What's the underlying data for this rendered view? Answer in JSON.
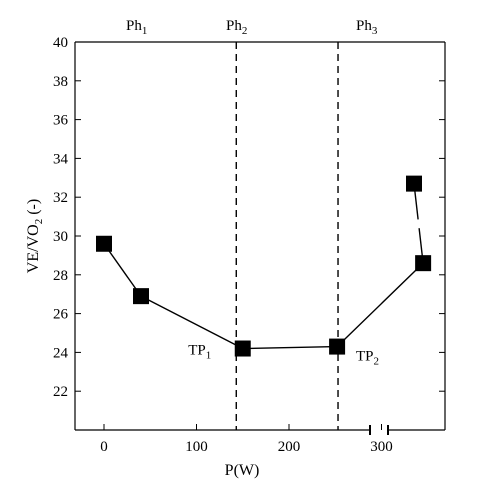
{
  "chart_data": {
    "type": "line",
    "xlabel": "P(W)",
    "ylabel": "VE/VO2 (-)",
    "ylim": [
      20,
      40
    ],
    "yticks": [
      22,
      24,
      26,
      28,
      30,
      32,
      34,
      36,
      38,
      40
    ],
    "xticks": [
      0,
      100,
      200,
      300
    ],
    "x_axis_break": true,
    "series": [
      {
        "x": [
          0,
          40,
          150,
          252,
          345,
          "after-break"
        ],
        "y": [
          29.6,
          26.9,
          24.2,
          24.3,
          28.6,
          32.7
        ]
      }
    ],
    "thresholds": [
      {
        "x": 143,
        "label_main": "TP",
        "label_sub": "1"
      },
      {
        "x": 253,
        "label_main": "TP",
        "label_sub": "2"
      }
    ],
    "phases": [
      {
        "main": "Ph",
        "sub": "1"
      },
      {
        "main": "Ph",
        "sub": "2"
      },
      {
        "main": "Ph",
        "sub": "3"
      }
    ],
    "colors": {
      "markers": "#000000",
      "lines": "#000000"
    }
  }
}
